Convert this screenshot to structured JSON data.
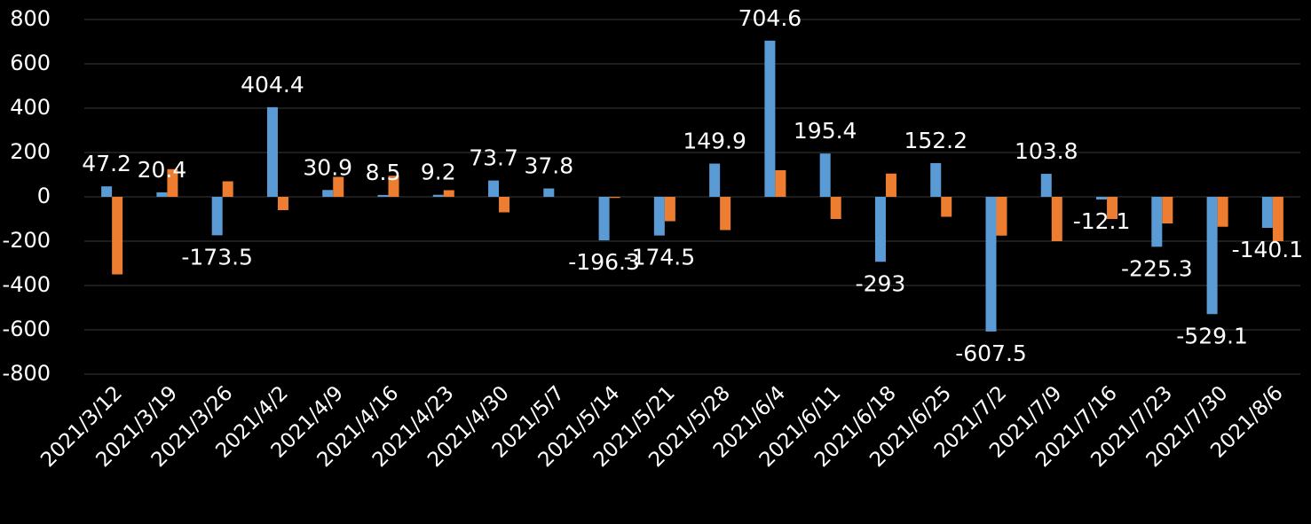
{
  "chart_data": {
    "type": "bar",
    "categories": [
      "2021/3/12",
      "2021/3/19",
      "2021/3/26",
      "2021/4/2",
      "2021/4/9",
      "2021/4/16",
      "2021/4/23",
      "2021/4/30",
      "2021/5/7",
      "2021/5/14",
      "2021/5/21",
      "2021/5/28",
      "2021/6/4",
      "2021/6/11",
      "2021/6/18",
      "2021/6/25",
      "2021/7/2",
      "2021/7/9",
      "2021/7/16",
      "2021/7/23",
      "2021/7/30",
      "2021/8/6"
    ],
    "series": [
      {
        "color": "#5b9bd5",
        "data_labels": true,
        "values": [
          47.2,
          20.4,
          -173.5,
          404.4,
          30.9,
          8.5,
          9.2,
          73.7,
          37.8,
          -196.3,
          -174.5,
          149.9,
          704.6,
          195.4,
          -293,
          152.2,
          -607.5,
          103.8,
          -12.1,
          -225.3,
          -529.1,
          -140.1
        ]
      },
      {
        "color": "#ed7d31",
        "data_labels": false,
        "values": [
          -350,
          125,
          70,
          -60,
          90,
          95,
          30,
          -70,
          0,
          -5,
          -110,
          -150,
          120,
          -100,
          105,
          -90,
          -175,
          -200,
          -100,
          -120,
          -135,
          -200
        ]
      }
    ],
    "ylim": [
      -800,
      800
    ],
    "yticks": [
      -800,
      -600,
      -400,
      -200,
      0,
      200,
      400,
      600,
      800
    ],
    "grid": true
  }
}
